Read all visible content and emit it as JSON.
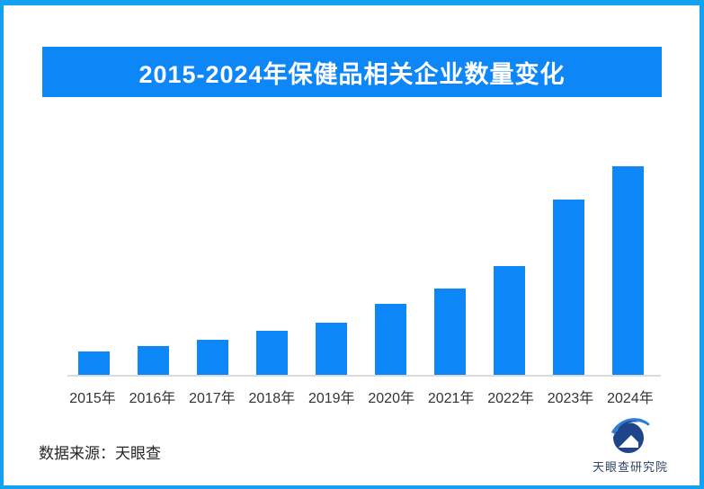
{
  "banner": {
    "title": "2015-2024年保健品相关企业数量变化"
  },
  "chart_data": {
    "type": "bar",
    "title": "2015-2024年保健品相关企业数量变化",
    "categories": [
      "2015年",
      "2016年",
      "2017年",
      "2018年",
      "2019年",
      "2020年",
      "2021年",
      "2022年",
      "2023年",
      "2024年"
    ],
    "values": [
      11.2,
      13.8,
      16.8,
      21.1,
      25.0,
      34.1,
      41.4,
      52.2,
      84.1,
      100
    ],
    "value_unit": "relative bar height, percent of 2024 bar (no numeric axis or data labels shown in image)",
    "xlabel": "",
    "ylabel": "",
    "ylim": [
      0,
      100
    ],
    "grid": "off",
    "legend": "none",
    "y_axis_shown": false,
    "bar_color": "#0d86f8",
    "axis_line_color": "#dbdbdb"
  },
  "footer": {
    "source": "数据来源：天眼查",
    "brand": "天眼查研究院"
  },
  "icons": {
    "brand_logo": "tianyancha-eye-swoosh-logo"
  },
  "colors": {
    "accent_blue": "#0d86f8",
    "frame_border_blue": "#13a1f1",
    "axis_line_gray": "#dbdbdb",
    "text_dark": "#262626",
    "brand_text_navy": "#2e4467",
    "logo_navy": "#1e4489",
    "logo_swoosh_blue": "#2c7fd8",
    "background": "#ffffff"
  }
}
